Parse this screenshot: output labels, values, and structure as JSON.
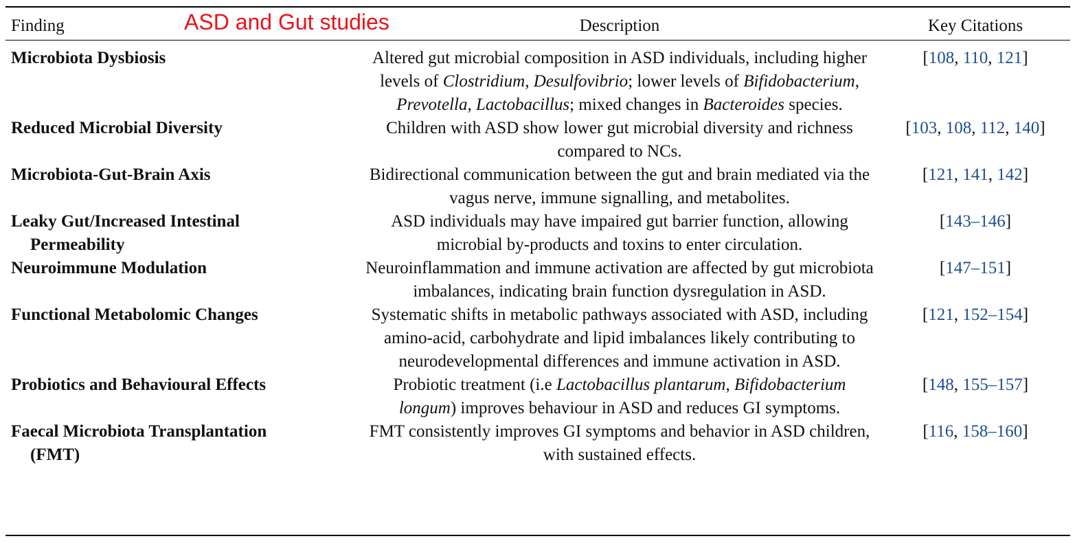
{
  "title": "ASD and Gut studies",
  "table": {
    "headers": [
      "Finding",
      "Description",
      "Key Citations"
    ],
    "rows": [
      {
        "finding": "Microbiota Dysbiosis",
        "description": [
          "Altered gut microbial composition in ASD individuals, including higher levels of ",
          {
            "text": "Clostridium",
            "style": "italic"
          },
          ", ",
          {
            "text": "Desulfovibrio",
            "style": "italic"
          },
          "; lower levels of ",
          {
            "text": "Bifidobacterium",
            "style": "italic"
          },
          ", ",
          {
            "text": "Prevotella",
            "style": "italic"
          },
          ", ",
          {
            "text": "Lactobacillus",
            "style": "italic"
          },
          "; mixed changes in ",
          {
            "text": "Bacteroides",
            "style": "italic"
          },
          " species."
        ],
        "citations": [
          "[",
          {
            "ref": "108"
          },
          ", ",
          {
            "ref": "110"
          },
          ", ",
          {
            "ref": "121"
          },
          "]"
        ]
      },
      {
        "finding": "Reduced Microbial Diversity",
        "description": [
          "Children with ASD show lower gut microbial diversity and richness compared to NCs."
        ],
        "citations": [
          "[",
          {
            "ref": "103"
          },
          ", ",
          {
            "ref": "108"
          },
          ", ",
          {
            "ref": "112"
          },
          ", ",
          {
            "ref": "140"
          },
          "]"
        ]
      },
      {
        "finding": "Microbiota-Gut-Brain Axis",
        "description": [
          "Bidirectional communication between the gut and brain mediated via the vagus nerve, immune signalling, and metabolites."
        ],
        "citations": [
          "[",
          {
            "ref": "121"
          },
          ", ",
          {
            "ref": "141"
          },
          ", ",
          {
            "ref": "142"
          },
          "]"
        ]
      },
      {
        "finding": "Leaky Gut/Increased Intestinal Permeability",
        "description": [
          "ASD individuals may have impaired gut barrier function, allowing microbial by-products and toxins to enter circulation."
        ],
        "citations": [
          "[",
          {
            "ref": "143–146"
          },
          "]"
        ]
      },
      {
        "finding": "Neuroimmune Modulation",
        "description": [
          "Neuroinflammation and immune activation are affected by gut microbiota imbalances, indicating brain function dysregulation in ASD."
        ],
        "citations": [
          "[",
          {
            "ref": "147–151"
          },
          "]"
        ]
      },
      {
        "finding": "Functional Metabolomic Changes",
        "description": [
          "Systematic shifts in metabolic pathways associated with ASD, including amino-acid, carbohydrate and lipid imbalances likely contributing to neurodevelopmental differences and immune activation in ASD."
        ],
        "citations": [
          "[",
          {
            "ref": "121"
          },
          ", ",
          {
            "ref": "152–154"
          },
          "]"
        ]
      },
      {
        "finding": "Probiotics and Behavioural Effects",
        "description": [
          "Probiotic treatment (i.e ",
          {
            "text": "Lactobacillus plantarum",
            "style": "italic"
          },
          ", ",
          {
            "text": "Bifidobacterium longum",
            "style": "italic"
          },
          ") improves behaviour in ASD and reduces GI symptoms."
        ],
        "citations": [
          "[",
          {
            "ref": "148"
          },
          ", ",
          {
            "ref": "155–157"
          },
          "]"
        ]
      },
      {
        "finding": "Faecal Microbiota Transplantation (FMT)",
        "description": [
          "FMT consistently improves GI symptoms and behavior in ASD children, with sustained effects."
        ],
        "citations": [
          "[",
          {
            "ref": "116"
          },
          ", ",
          {
            "ref": "158–160"
          },
          "]"
        ]
      }
    ]
  }
}
